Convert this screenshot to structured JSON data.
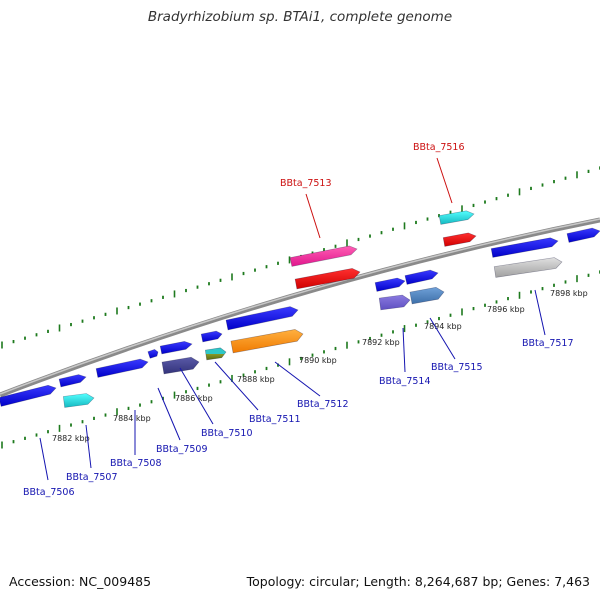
{
  "title": "Bradyrhizobium sp. BTAi1, complete genome",
  "footer": {
    "accession": "Accession: NC_009485",
    "summary": "Topology: circular; Length: 8,264,687 bp; Genes: 7,463"
  },
  "colors": {
    "backbone": "#8a8a8a",
    "tick": "#1e7a1e",
    "label_blue": "#1515b0",
    "label_red": "#cc1010"
  },
  "scale_ticks": [
    {
      "label": "7882 kbp"
    },
    {
      "label": "7884 kbp"
    },
    {
      "label": "7886 kbp"
    },
    {
      "label": "7888 kbp"
    },
    {
      "label": "7890 kbp"
    },
    {
      "label": "7892 kbp"
    },
    {
      "label": "7894 kbp"
    },
    {
      "label": "7896 kbp"
    },
    {
      "label": "7898 kbp"
    }
  ],
  "gene_labels": [
    {
      "name": "BBta_7506",
      "color": "blue"
    },
    {
      "name": "BBta_7507",
      "color": "blue"
    },
    {
      "name": "BBta_7508",
      "color": "blue"
    },
    {
      "name": "BBta_7509",
      "color": "blue"
    },
    {
      "name": "BBta_7510",
      "color": "blue"
    },
    {
      "name": "BBta_7511",
      "color": "blue"
    },
    {
      "name": "BBta_7512",
      "color": "blue"
    },
    {
      "name": "BBta_7513",
      "color": "red"
    },
    {
      "name": "BBta_7514",
      "color": "blue"
    },
    {
      "name": "BBta_7515",
      "color": "blue"
    },
    {
      "name": "BBta_7516",
      "color": "red"
    },
    {
      "name": "BBta_7517",
      "color": "blue"
    }
  ]
}
